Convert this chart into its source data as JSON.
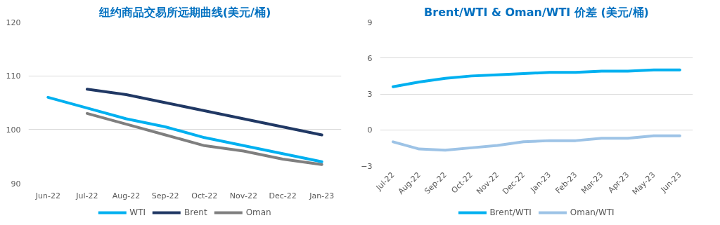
{
  "chart_data": [
    {
      "type": "line",
      "title": "纽约商品交易所远期曲线(美元/桶)",
      "categories": [
        "Jun-22",
        "Jul-22",
        "Aug-22",
        "Sep-22",
        "Oct-22",
        "Nov-22",
        "Dec-22",
        "Jan-23"
      ],
      "series": [
        {
          "name": "WTI",
          "color": "#00b0f0",
          "values": [
            106,
            104,
            102,
            100.5,
            98.5,
            97,
            95.5,
            94
          ]
        },
        {
          "name": "Brent",
          "color": "#203864",
          "values": [
            null,
            107.5,
            106.5,
            105,
            103.5,
            102,
            100.5,
            99
          ]
        },
        {
          "name": "Oman",
          "color": "#7f7f7f",
          "values": [
            null,
            103,
            101,
            99,
            97,
            96,
            94.5,
            93.5
          ]
        }
      ],
      "ylim": [
        90,
        120
      ],
      "yticks": [
        90,
        100,
        110,
        120
      ],
      "grid": "y",
      "legend": "bottom",
      "line_style": "solid",
      "marker": "none"
    },
    {
      "type": "line",
      "title": "Brent/WTI & Oman/WTI 价差 (美元/桶)",
      "categories": [
        "Jul-22",
        "Aug-22",
        "Sep-22",
        "Oct-22",
        "Nov-22",
        "Dec-22",
        "Jan-23",
        "Feb-23",
        "Mar-23",
        "Apr-23",
        "May-23",
        "Jun-23"
      ],
      "series": [
        {
          "name": "Brent/WTI",
          "color": "#00b0f0",
          "values": [
            3.6,
            4.0,
            4.3,
            4.5,
            4.6,
            4.7,
            4.8,
            4.8,
            4.9,
            4.9,
            5.0,
            5.0
          ]
        },
        {
          "name": "Oman/WTI",
          "color": "#9dc3e6",
          "values": [
            -1.0,
            -1.6,
            -1.7,
            -1.5,
            -1.3,
            -1.0,
            -0.9,
            -0.9,
            -0.7,
            -0.7,
            -0.5,
            -0.5
          ]
        }
      ],
      "ylim": [
        -3,
        9
      ],
      "yticks": [
        -3,
        0,
        3,
        6,
        9
      ],
      "grid": "y",
      "legend": "bottom",
      "line_style": "solid",
      "marker": "none"
    }
  ]
}
